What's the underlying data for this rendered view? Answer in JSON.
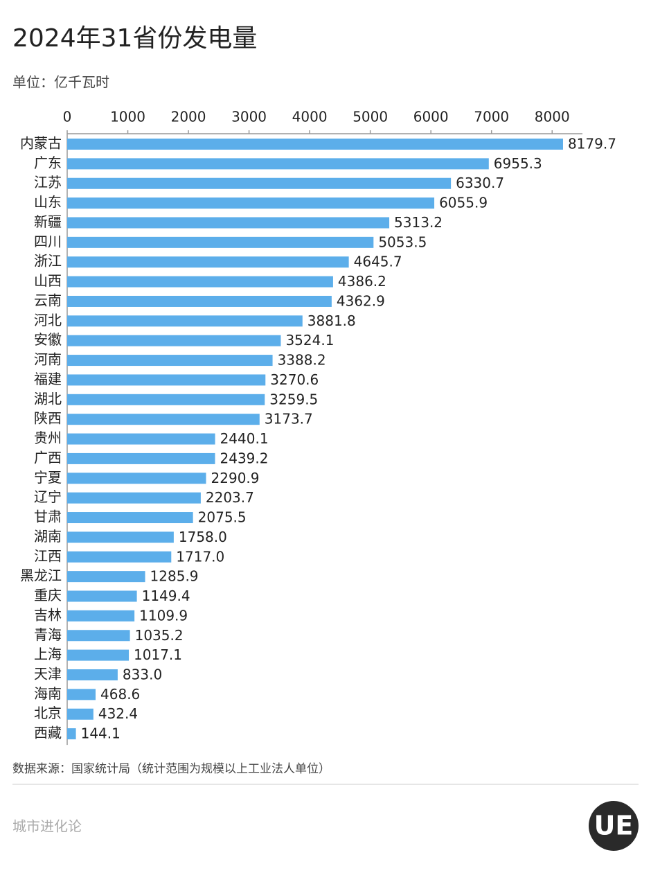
{
  "chart_data": {
    "type": "barh",
    "title": "2024年31省份发电量",
    "subtitle": "单位：亿千瓦时",
    "source": "数据来源：国家统计局（统计范围为规模以上工业法人单位）",
    "brand": "城市进化论",
    "logo": "UE",
    "color": "#5caeea",
    "categories": [
      "内蒙古",
      "广东",
      "江苏",
      "山东",
      "新疆",
      "四川",
      "浙江",
      "山西",
      "云南",
      "河北",
      "安徽",
      "河南",
      "福建",
      "湖北",
      "陕西",
      "贵州",
      "广西",
      "宁夏",
      "辽宁",
      "甘肃",
      "湖南",
      "江西",
      "黑龙江",
      "重庆",
      "吉林",
      "青海",
      "上海",
      "天津",
      "海南",
      "北京",
      "西藏"
    ],
    "values": [
      8179.7,
      6955.3,
      6330.7,
      6055.9,
      5313.2,
      5053.5,
      4645.7,
      4386.2,
      4362.9,
      3881.8,
      3524.1,
      3388.2,
      3270.6,
      3259.5,
      3173.7,
      2440.1,
      2439.2,
      2290.9,
      2203.7,
      2075.5,
      1758,
      1717,
      1285.9,
      1149.4,
      1109.9,
      1035.2,
      1017.1,
      833,
      468.6,
      432.4,
      144.1
    ],
    "value_labels": [
      "8179.7",
      "6955.3",
      "6330.7",
      "6055.9",
      "5313.2",
      "5053.5",
      "4645.7",
      "4386.2",
      "4362.9",
      "3881.8",
      "3524.1",
      "3388.2",
      "3270.6",
      "3259.5",
      "3173.7",
      "2440.1",
      "2439.2",
      "2290.9",
      "2203.7",
      "2075.5",
      "1758.0",
      "1717.0",
      "1285.9",
      "1149.4",
      "1109.9",
      "1035.2",
      "1017.1",
      "833.0",
      "468.6",
      "432.4",
      "144.1"
    ],
    "xlim": [
      0,
      8500
    ],
    "xticks": [
      0,
      1000,
      2000,
      3000,
      4000,
      5000,
      6000,
      7000,
      8000
    ]
  }
}
